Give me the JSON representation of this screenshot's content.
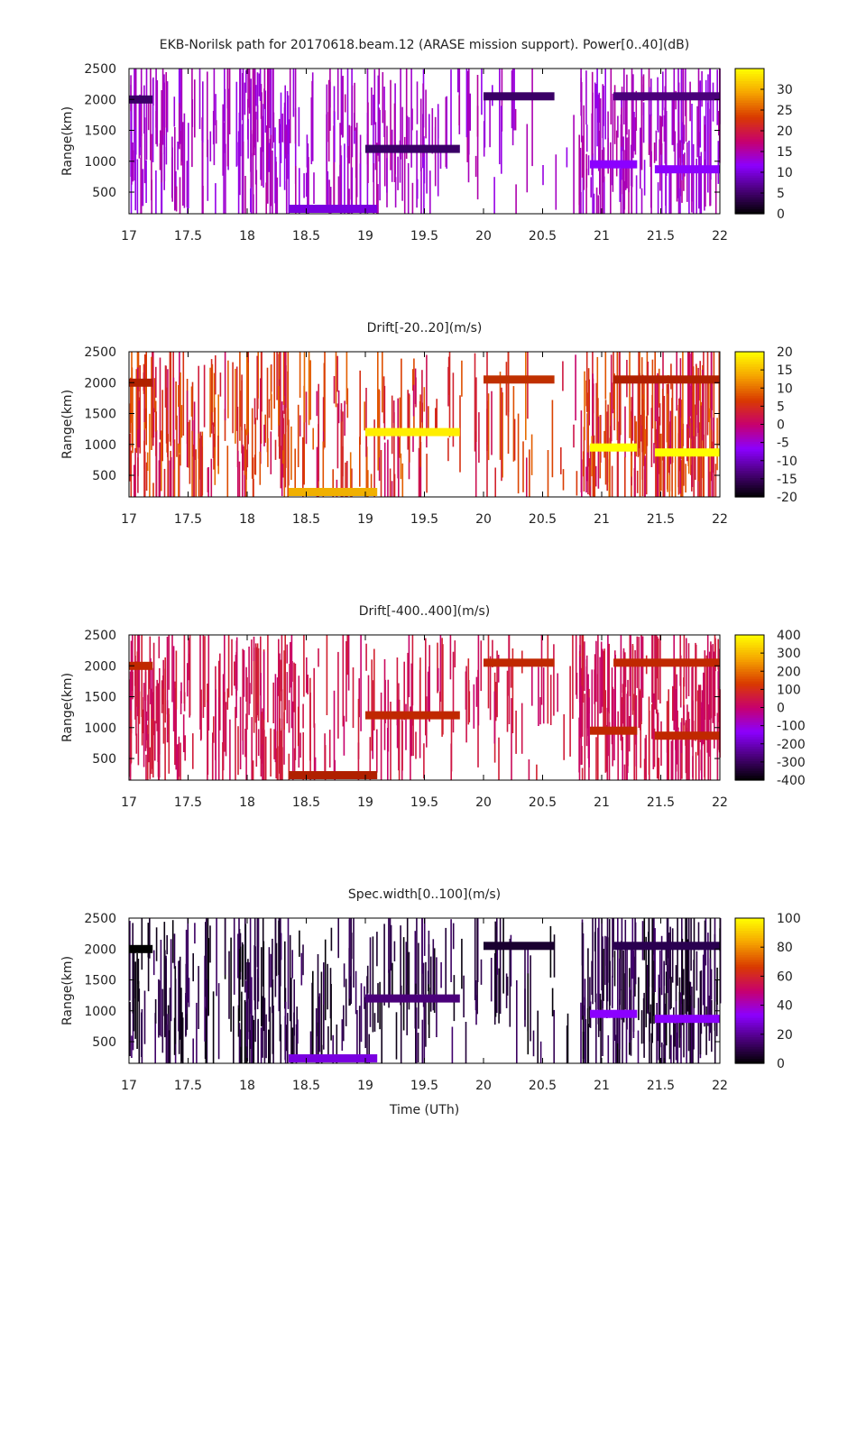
{
  "figure_title": "EKB-Norilsk path for 20170618.beam.12 (ARASE mission support). Power[0..40](dB)",
  "chart_data": [
    {
      "type": "heatmap",
      "title": "EKB-Norilsk path for 20170618.beam.12 (ARASE mission support). Power[0..40](dB)",
      "ylabel": "Range(km)",
      "xlabel": "",
      "xlim": [
        17,
        22
      ],
      "ylim": [
        150,
        2500
      ],
      "x_ticks": [
        "17",
        "17.5",
        "18",
        "18.5",
        "19",
        "19.5",
        "20",
        "20.5",
        "21",
        "21.5",
        "22"
      ],
      "y_ticks": [
        "500",
        "1000",
        "1500",
        "2000",
        "2500"
      ],
      "colorbar": {
        "range": [
          0,
          35
        ],
        "ticks": [
          "0",
          "5",
          "10",
          "15",
          "20",
          "25",
          "30"
        ],
        "palette": [
          "#000000",
          "#4a007a",
          "#8b00ff",
          "#c7006e",
          "#d93a00",
          "#f5a300",
          "#ffff00"
        ]
      },
      "scatter_color_range": [
        0.35,
        0.45
      ],
      "features": [
        {
          "x": [
            17.0,
            17.2
          ],
          "y": 2000,
          "value": 7,
          "color_hint": "#3a0066"
        },
        {
          "x": [
            18.35,
            19.1
          ],
          "y": 230,
          "value": 10,
          "color_hint": "#7a00e0"
        },
        {
          "x": [
            19.0,
            19.8
          ],
          "y": 1200,
          "value": 6,
          "color_hint": "#3a0066"
        },
        {
          "x": [
            20.0,
            20.6
          ],
          "y": 2050,
          "value": 6,
          "color_hint": "#3a0066"
        },
        {
          "x": [
            20.9,
            21.3
          ],
          "y": 950,
          "value": 12,
          "color_hint": "#8b00ff"
        },
        {
          "x": [
            21.45,
            22.0
          ],
          "y": 870,
          "value": 12,
          "color_hint": "#8b00ff"
        },
        {
          "x": [
            21.1,
            22.0
          ],
          "y": 2050,
          "value": 7,
          "color_hint": "#4a007a"
        }
      ]
    },
    {
      "type": "heatmap",
      "title": "Drift[-20..20](m/s)",
      "ylabel": "Range(km)",
      "xlabel": "",
      "xlim": [
        17,
        22
      ],
      "ylim": [
        150,
        2500
      ],
      "x_ticks": [
        "17",
        "17.5",
        "18",
        "18.5",
        "19",
        "19.5",
        "20",
        "20.5",
        "21",
        "21.5",
        "22"
      ],
      "y_ticks": [
        "500",
        "1000",
        "1500",
        "2000",
        "2500"
      ],
      "colorbar": {
        "range": [
          -20,
          20
        ],
        "ticks": [
          "-20",
          "-15",
          "-10",
          "-5",
          "0",
          "5",
          "10",
          "15",
          "20"
        ],
        "palette": [
          "#000000",
          "#4a007a",
          "#8b00ff",
          "#c7006e",
          "#d93a00",
          "#f5a300",
          "#ffff00"
        ]
      },
      "scatter_color_range": [
        0.5,
        0.75
      ],
      "features": [
        {
          "x": [
            17.0,
            17.2
          ],
          "y": 2000,
          "value": 2,
          "color_hint": "#b02000"
        },
        {
          "x": [
            18.35,
            19.1
          ],
          "y": 230,
          "value": 12,
          "color_hint": "#f0b000"
        },
        {
          "x": [
            19.0,
            19.8
          ],
          "y": 1200,
          "value": 15,
          "color_hint": "#ffee00"
        },
        {
          "x": [
            20.0,
            20.6
          ],
          "y": 2050,
          "value": 3,
          "color_hint": "#c03000"
        },
        {
          "x": [
            20.9,
            21.3
          ],
          "y": 950,
          "value": 20,
          "color_hint": "#ffff00"
        },
        {
          "x": [
            21.45,
            22.0
          ],
          "y": 870,
          "value": 18,
          "color_hint": "#ffff00"
        },
        {
          "x": [
            21.1,
            22.0
          ],
          "y": 2050,
          "value": 5,
          "color_hint": "#b02000"
        }
      ]
    },
    {
      "type": "heatmap",
      "title": "Drift[-400..400](m/s)",
      "ylabel": "Range(km)",
      "xlabel": "",
      "xlim": [
        17,
        22
      ],
      "ylim": [
        150,
        2500
      ],
      "x_ticks": [
        "17",
        "17.5",
        "18",
        "18.5",
        "19",
        "19.5",
        "20",
        "20.5",
        "21",
        "21.5",
        "22"
      ],
      "y_ticks": [
        "500",
        "1000",
        "1500",
        "2000",
        "2500"
      ],
      "colorbar": {
        "range": [
          -400,
          400
        ],
        "ticks": [
          "-400",
          "-300",
          "-200",
          "-100",
          "0",
          "100",
          "200",
          "300",
          "400"
        ],
        "palette": [
          "#000000",
          "#4a007a",
          "#8b00ff",
          "#c7006e",
          "#d93a00",
          "#f5a300",
          "#ffff00"
        ]
      },
      "scatter_color_range": [
        0.5,
        0.6
      ],
      "features": [
        {
          "x": [
            17.0,
            17.2
          ],
          "y": 2000,
          "value": 20,
          "color_hint": "#c02800"
        },
        {
          "x": [
            18.35,
            19.1
          ],
          "y": 230,
          "value": 20,
          "color_hint": "#b02000"
        },
        {
          "x": [
            19.0,
            19.8
          ],
          "y": 1200,
          "value": 20,
          "color_hint": "#c02800"
        },
        {
          "x": [
            20.0,
            20.6
          ],
          "y": 2050,
          "value": 20,
          "color_hint": "#c02800"
        },
        {
          "x": [
            20.9,
            21.3
          ],
          "y": 950,
          "value": 20,
          "color_hint": "#c02800"
        },
        {
          "x": [
            21.45,
            22.0
          ],
          "y": 870,
          "value": 20,
          "color_hint": "#c02800"
        },
        {
          "x": [
            21.1,
            22.0
          ],
          "y": 2050,
          "value": 20,
          "color_hint": "#c02800"
        }
      ]
    },
    {
      "type": "heatmap",
      "title": "Spec.width[0..100](m/s)",
      "ylabel": "Range(km)",
      "xlabel": "Time (UTh)",
      "xlim": [
        17,
        22
      ],
      "ylim": [
        150,
        2500
      ],
      "x_ticks": [
        "17",
        "17.5",
        "18",
        "18.5",
        "19",
        "19.5",
        "20",
        "20.5",
        "21",
        "21.5",
        "22"
      ],
      "y_ticks": [
        "500",
        "1000",
        "1500",
        "2000",
        "2500"
      ],
      "colorbar": {
        "range": [
          0,
          100
        ],
        "ticks": [
          "0",
          "20",
          "40",
          "60",
          "80",
          "100"
        ],
        "palette": [
          "#000000",
          "#4a007a",
          "#8b00ff",
          "#c7006e",
          "#d93a00",
          "#f5a300",
          "#ffff00"
        ]
      },
      "scatter_color_range": [
        0.0,
        0.15
      ],
      "features": [
        {
          "x": [
            17.0,
            17.2
          ],
          "y": 2000,
          "value": 3,
          "color_hint": "#000000"
        },
        {
          "x": [
            18.35,
            19.1
          ],
          "y": 230,
          "value": 25,
          "color_hint": "#7a00e0"
        },
        {
          "x": [
            19.0,
            19.8
          ],
          "y": 1200,
          "value": 15,
          "color_hint": "#4a007a"
        },
        {
          "x": [
            20.0,
            20.6
          ],
          "y": 2050,
          "value": 5,
          "color_hint": "#1a0030"
        },
        {
          "x": [
            20.9,
            21.3
          ],
          "y": 950,
          "value": 25,
          "color_hint": "#8b00ff"
        },
        {
          "x": [
            21.45,
            22.0
          ],
          "y": 870,
          "value": 25,
          "color_hint": "#8b00ff"
        },
        {
          "x": [
            21.1,
            22.0
          ],
          "y": 2050,
          "value": 8,
          "color_hint": "#2a0050"
        }
      ]
    }
  ]
}
